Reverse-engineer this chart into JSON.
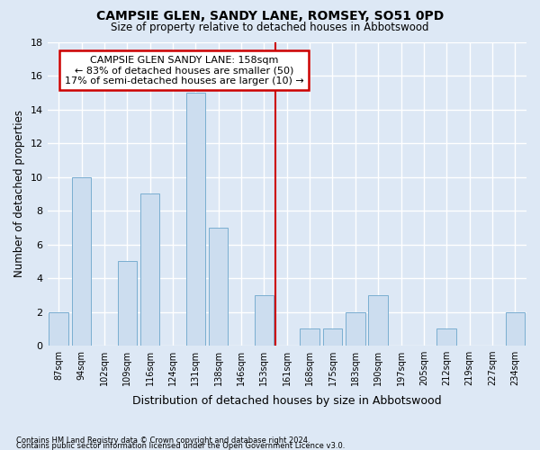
{
  "title": "CAMPSIE GLEN, SANDY LANE, ROMSEY, SO51 0PD",
  "subtitle": "Size of property relative to detached houses in Abbotswood",
  "xlabel": "Distribution of detached houses by size in Abbotswood",
  "ylabel": "Number of detached properties",
  "categories": [
    "87sqm",
    "94sqm",
    "102sqm",
    "109sqm",
    "116sqm",
    "124sqm",
    "131sqm",
    "138sqm",
    "146sqm",
    "153sqm",
    "161sqm",
    "168sqm",
    "175sqm",
    "183sqm",
    "190sqm",
    "197sqm",
    "205sqm",
    "212sqm",
    "219sqm",
    "227sqm",
    "234sqm"
  ],
  "values": [
    2,
    10,
    0,
    5,
    9,
    0,
    15,
    7,
    0,
    3,
    0,
    1,
    1,
    2,
    3,
    0,
    0,
    1,
    0,
    0,
    2
  ],
  "bar_color": "#ccddef",
  "bar_edge_color": "#7aaed0",
  "background_color": "#dde8f5",
  "grid_color": "#ffffff",
  "vline_index": 9.5,
  "vline_color": "#cc0000",
  "annotation_line1": "CAMPSIE GLEN SANDY LANE: 158sqm",
  "annotation_line2": "← 83% of detached houses are smaller (50)",
  "annotation_line3": "17% of semi-detached houses are larger (10) →",
  "annotation_box_color": "#ffffff",
  "annotation_box_edge": "#cc0000",
  "ylim": [
    0,
    18
  ],
  "yticks": [
    0,
    2,
    4,
    6,
    8,
    10,
    12,
    14,
    16,
    18
  ],
  "footer_line1": "Contains HM Land Registry data © Crown copyright and database right 2024.",
  "footer_line2": "Contains public sector information licensed under the Open Government Licence v3.0."
}
